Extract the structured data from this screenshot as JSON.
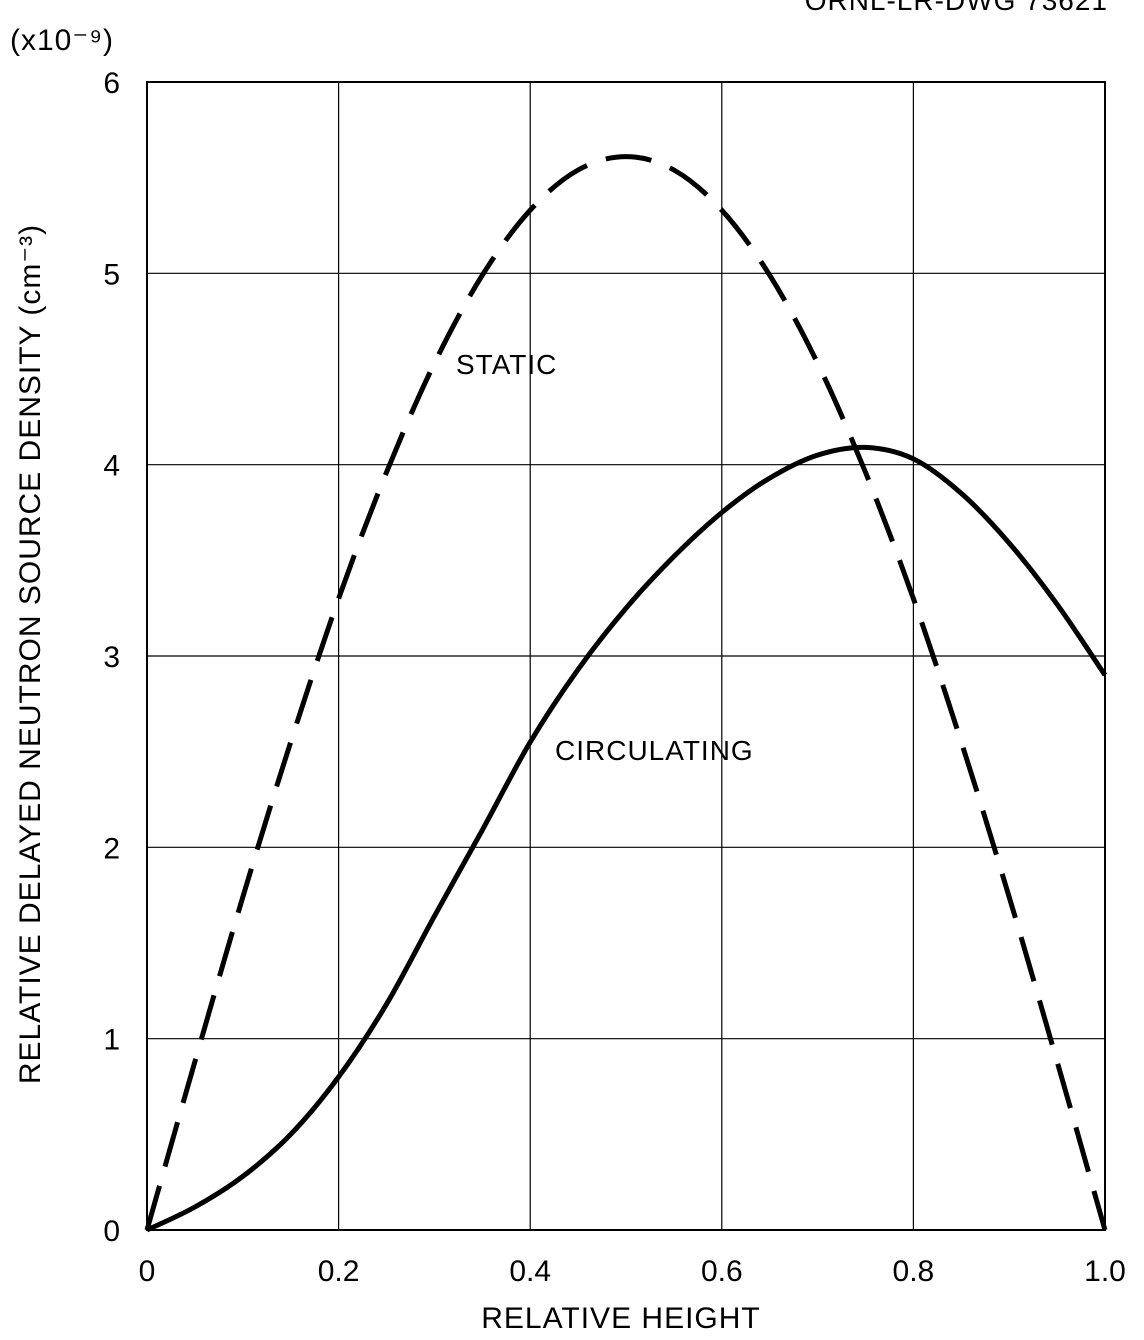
{
  "document_id": "ORNL-LR-DWG 73621",
  "chart_data": {
    "type": "line",
    "title": "",
    "xlabel": "RELATIVE HEIGHT",
    "ylabel": "RELATIVE DELAYED NEUTRON SOURCE DENSITY (cm⁻³)",
    "y_multiplier": "(x10⁻⁹)",
    "xlim": [
      0,
      1.0
    ],
    "ylim": [
      0,
      6
    ],
    "x_ticks": [
      "0",
      "0.2",
      "0.4",
      "0.6",
      "0.8",
      "1.0"
    ],
    "y_ticks": [
      "0",
      "1",
      "2",
      "3",
      "4",
      "5",
      "6"
    ],
    "grid": true,
    "series": [
      {
        "name": "STATIC",
        "style": "dashed",
        "x": [
          0,
          0.05,
          0.1,
          0.15,
          0.2,
          0.25,
          0.3,
          0.35,
          0.4,
          0.45,
          0.5,
          0.55,
          0.6,
          0.65,
          0.7,
          0.75,
          0.8,
          0.85,
          0.9,
          0.95,
          1.0
        ],
        "y": [
          0,
          0.88,
          1.74,
          2.55,
          3.3,
          3.96,
          4.53,
          4.99,
          5.33,
          5.54,
          5.61,
          5.54,
          5.33,
          4.99,
          4.53,
          3.96,
          3.3,
          2.55,
          1.74,
          0.88,
          0
        ]
      },
      {
        "name": "CIRCULATING",
        "style": "solid",
        "x": [
          0,
          0.05,
          0.1,
          0.15,
          0.2,
          0.25,
          0.3,
          0.35,
          0.4,
          0.45,
          0.5,
          0.55,
          0.6,
          0.65,
          0.7,
          0.75,
          0.8,
          0.85,
          0.9,
          0.95,
          1.0
        ],
        "y": [
          0,
          0.12,
          0.28,
          0.5,
          0.8,
          1.18,
          1.64,
          2.09,
          2.55,
          2.93,
          3.25,
          3.52,
          3.75,
          3.93,
          4.05,
          4.09,
          4.03,
          3.85,
          3.59,
          3.27,
          2.9
        ]
      }
    ]
  }
}
